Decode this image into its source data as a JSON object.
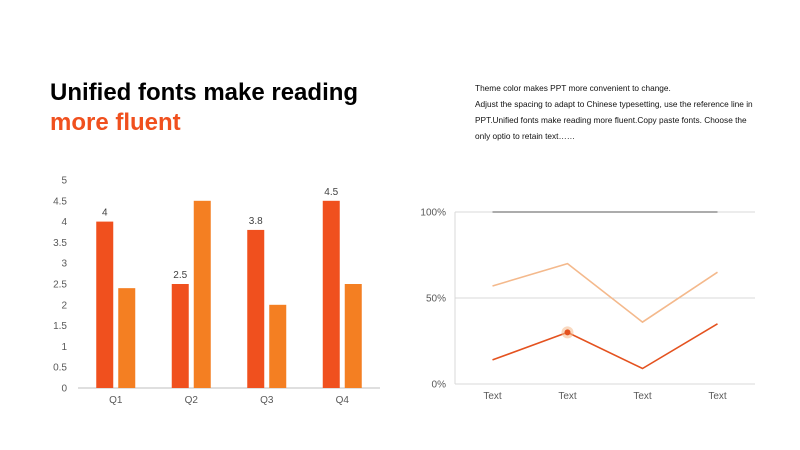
{
  "title": {
    "line1": "Unified fonts make reading",
    "line2": "more fluent"
  },
  "description": {
    "line1": "Theme  color makes PPT more convenient  to change.",
    "line2": "Adjust the spacing to adapt to Chinese typesetting, use the reference line in PPT.Unified fonts make reading more fluent.Copy paste fonts. Choose the only optio to retain text……"
  },
  "colors": {
    "series1": "#f0501e",
    "series2": "#f47f22",
    "line_dark": "#e4521f",
    "line_light": "#f4b98c",
    "line_top": "#595959",
    "grid": "#d9d9d9",
    "title_accent": "#f0501e"
  },
  "chart_data": [
    {
      "type": "bar",
      "categories": [
        "Q1",
        "Q2",
        "Q3",
        "Q4"
      ],
      "series": [
        {
          "values": [
            4,
            2.5,
            3.8,
            4.5
          ],
          "data_labels": [
            "4",
            "2.5",
            "3.8",
            "4.5"
          ]
        },
        {
          "values": [
            2.4,
            4.5,
            2,
            2.5
          ]
        }
      ],
      "ylim": [
        0,
        5
      ],
      "yticks": [
        "0",
        "0.5",
        "1",
        "1.5",
        "2",
        "2.5",
        "3",
        "3.5",
        "4",
        "4.5",
        "5"
      ],
      "grid": false
    },
    {
      "type": "line",
      "categories": [
        "Text",
        "Text",
        "Text",
        "Text"
      ],
      "series": [
        {
          "values": [
            1.0,
            1.0,
            1.0,
            1.0
          ]
        },
        {
          "values": [
            0.57,
            0.7,
            0.36,
            0.65
          ]
        },
        {
          "values": [
            0.14,
            0.3,
            0.09,
            0.35
          ],
          "highlight_index": 1
        }
      ],
      "ylim": [
        0,
        1
      ],
      "yticks": [
        "0%",
        "50%",
        "100%"
      ],
      "grid": true
    }
  ]
}
